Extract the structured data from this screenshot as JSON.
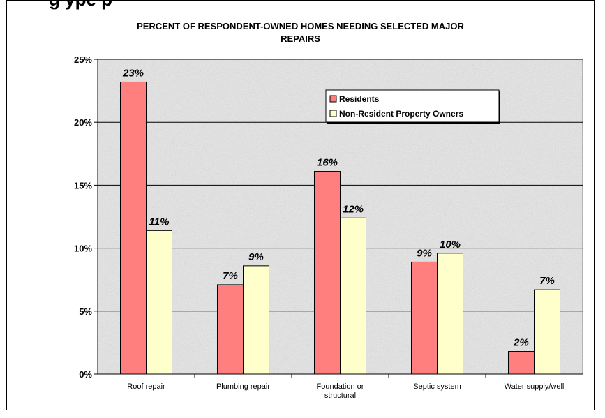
{
  "page_heading_partial": "g          ype               p",
  "chart_data": {
    "type": "bar",
    "title_lines": [
      "PERCENT OF RESPONDENT-OWNED HOMES NEEDING SELECTED MAJOR",
      "REPAIRS"
    ],
    "categories": [
      "Roof repair",
      "Plumbing repair",
      "Foundation or structural",
      "Septic system",
      "Water supply/well"
    ],
    "category_lines": [
      [
        "Roof repair"
      ],
      [
        "Plumbing repair"
      ],
      [
        "Foundation or",
        "structural"
      ],
      [
        "Septic system"
      ],
      [
        "Water supply/well"
      ]
    ],
    "series": [
      {
        "name": "Residents",
        "color": "#ff7f7f",
        "values": [
          23.2,
          7.1,
          16.1,
          8.9,
          1.8
        ],
        "labels": [
          "23%",
          "7%",
          "16%",
          "9%",
          "2%"
        ]
      },
      {
        "name": "Non-Resident Property Owners",
        "color": "#ffffcc",
        "values": [
          11.4,
          8.6,
          12.4,
          9.6,
          6.7
        ],
        "labels": [
          "11%",
          "9%",
          "12%",
          "10%",
          "7%"
        ]
      }
    ],
    "ylim": [
      0,
      25
    ],
    "yticks": [
      0,
      5,
      10,
      15,
      20,
      25
    ],
    "ytick_labels": [
      "0%",
      "5%",
      "10%",
      "15%",
      "20%",
      "25%"
    ],
    "grid": true,
    "legend_position": "top-right",
    "plot_background": "#e6e6e6"
  }
}
